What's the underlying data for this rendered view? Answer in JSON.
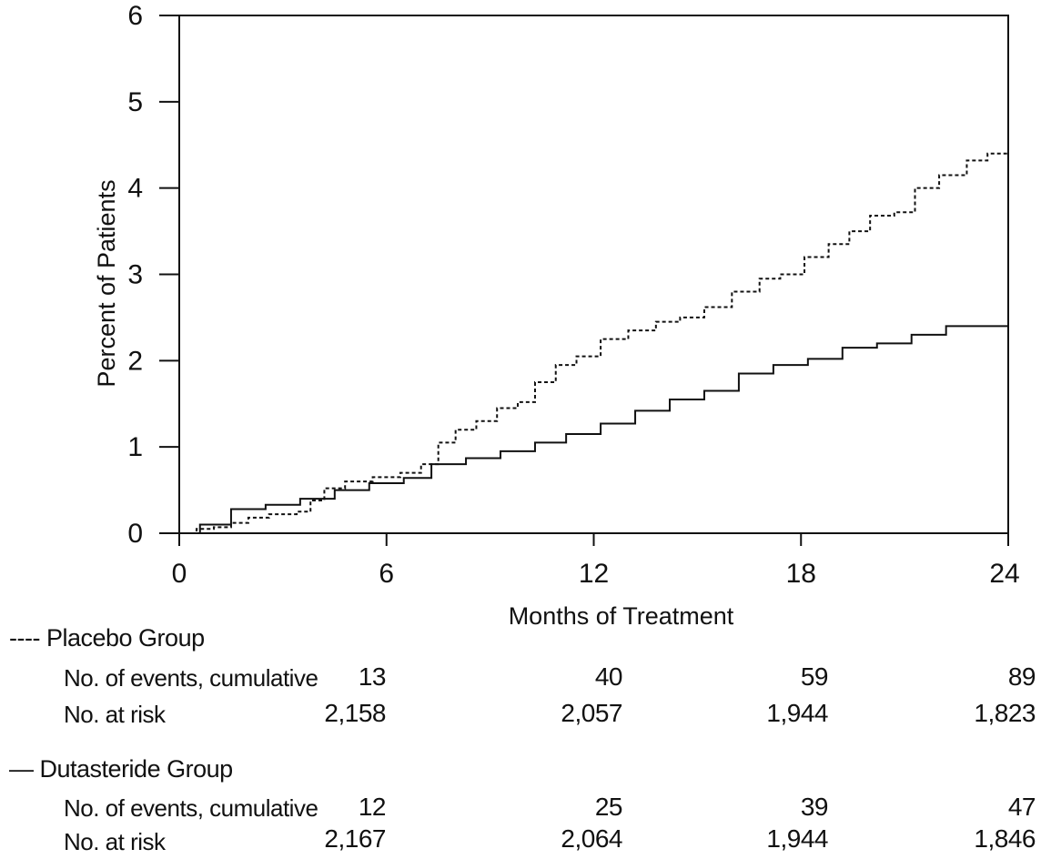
{
  "chart_data": {
    "type": "line",
    "title": "",
    "xlabel": "Months of Treatment",
    "ylabel": "Percent of Patients",
    "xlim": [
      0,
      24
    ],
    "ylim": [
      0,
      6
    ],
    "xticks": [
      "0",
      "6",
      "12",
      "18",
      "24"
    ],
    "yticks": [
      "0",
      "1",
      "2",
      "3",
      "4",
      "5",
      "6"
    ],
    "grid": false,
    "series": [
      {
        "name": "Placebo Group",
        "style": "dashed",
        "color": "#111111",
        "points": [
          [
            0,
            0
          ],
          [
            0.5,
            0.05
          ],
          [
            1,
            0.07
          ],
          [
            1.5,
            0.12
          ],
          [
            2,
            0.18
          ],
          [
            2.6,
            0.22
          ],
          [
            3.4,
            0.25
          ],
          [
            3.8,
            0.38
          ],
          [
            4.2,
            0.52
          ],
          [
            4.8,
            0.6
          ],
          [
            5.6,
            0.65
          ],
          [
            6.4,
            0.7
          ],
          [
            7.0,
            0.8
          ],
          [
            7.5,
            1.05
          ],
          [
            8.0,
            1.2
          ],
          [
            8.6,
            1.3
          ],
          [
            9.2,
            1.45
          ],
          [
            9.8,
            1.52
          ],
          [
            10.3,
            1.75
          ],
          [
            10.9,
            1.95
          ],
          [
            11.5,
            2.05
          ],
          [
            12.2,
            2.25
          ],
          [
            13.0,
            2.35
          ],
          [
            13.8,
            2.45
          ],
          [
            14.5,
            2.5
          ],
          [
            15.2,
            2.62
          ],
          [
            16.0,
            2.8
          ],
          [
            16.8,
            2.95
          ],
          [
            17.4,
            3.0
          ],
          [
            18.1,
            3.2
          ],
          [
            18.8,
            3.35
          ],
          [
            19.4,
            3.5
          ],
          [
            20.0,
            3.68
          ],
          [
            20.7,
            3.72
          ],
          [
            21.3,
            4.0
          ],
          [
            22.0,
            4.15
          ],
          [
            22.8,
            4.32
          ],
          [
            23.4,
            4.4
          ],
          [
            24,
            4.42
          ]
        ]
      },
      {
        "name": "Dutasteride Group",
        "style": "solid",
        "color": "#111111",
        "points": [
          [
            0,
            0
          ],
          [
            0.6,
            0.1
          ],
          [
            1.5,
            0.28
          ],
          [
            2.5,
            0.33
          ],
          [
            3.5,
            0.4
          ],
          [
            4.5,
            0.5
          ],
          [
            5.5,
            0.58
          ],
          [
            6.5,
            0.64
          ],
          [
            7.3,
            0.8
          ],
          [
            8.3,
            0.87
          ],
          [
            9.3,
            0.95
          ],
          [
            10.3,
            1.05
          ],
          [
            11.2,
            1.15
          ],
          [
            12.2,
            1.27
          ],
          [
            13.2,
            1.42
          ],
          [
            14.2,
            1.55
          ],
          [
            15.2,
            1.65
          ],
          [
            16.2,
            1.85
          ],
          [
            17.2,
            1.95
          ],
          [
            18.2,
            2.02
          ],
          [
            19.2,
            2.15
          ],
          [
            20.2,
            2.2
          ],
          [
            21.2,
            2.3
          ],
          [
            22.2,
            2.4
          ],
          [
            24,
            2.4
          ]
        ]
      }
    ]
  },
  "risk_table": {
    "groups": [
      {
        "legend_symbol": "----",
        "name": "Placebo Group",
        "rows": [
          {
            "label": "No. of events, cumulative",
            "values": [
              "13",
              "40",
              "59",
              "89"
            ]
          },
          {
            "label": "No. at risk",
            "values": [
              "2,158",
              "2,057",
              "1,944",
              "1,823"
            ]
          }
        ]
      },
      {
        "legend_symbol": "—",
        "name": "Dutasteride Group",
        "rows": [
          {
            "label": "No. of events, cumulative",
            "values": [
              "12",
              "25",
              "39",
              "47"
            ]
          },
          {
            "label": "No. at risk",
            "values": [
              "2,167",
              "2,064",
              "1,944",
              "1,846"
            ]
          }
        ]
      }
    ]
  }
}
